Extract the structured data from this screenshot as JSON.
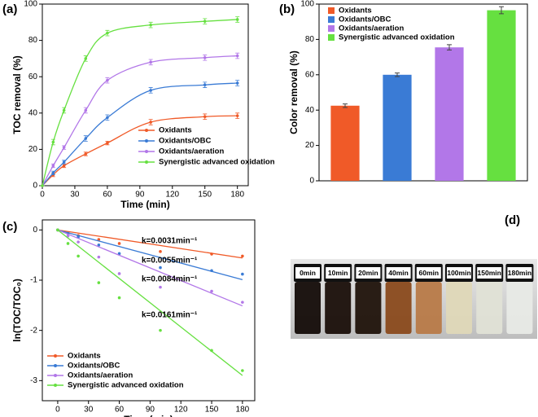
{
  "chart_data": [
    {
      "type": "line",
      "panel_label": "(a)",
      "xlabel": "Time (min)",
      "ylabel": "TOC removal (%)",
      "x": [
        0,
        10,
        20,
        40,
        60,
        100,
        150,
        180
      ],
      "xlim": [
        0,
        190
      ],
      "xticks": [
        0,
        30,
        60,
        90,
        120,
        150,
        180
      ],
      "ylim": [
        0,
        100
      ],
      "yticks": [
        0,
        20,
        40,
        60,
        80,
        100
      ],
      "series": [
        {
          "name": "Oxidants",
          "color": "#f05a28",
          "values": [
            0,
            6,
            11,
            17.5,
            23.5,
            35,
            38,
            38.5
          ],
          "errors": [
            0,
            1,
            1,
            1,
            1,
            1.5,
            1.5,
            1.5
          ]
        },
        {
          "name": "Oxidants/OBC",
          "color": "#3a7bd5",
          "values": [
            0,
            7,
            13,
            26,
            37.5,
            52.5,
            55.5,
            56.5
          ],
          "errors": [
            0,
            1,
            1,
            1.5,
            1.5,
            1.5,
            1.5,
            1.5
          ]
        },
        {
          "name": "Oxidants/aeration",
          "color": "#b277e8",
          "values": [
            0,
            11,
            21,
            41.5,
            58,
            68,
            70.5,
            71.5
          ],
          "errors": [
            0,
            1,
            1,
            1.5,
            1.5,
            1.5,
            1.5,
            1.5
          ]
        },
        {
          "name": "Synergistic advanced oxidation",
          "color": "#66e040",
          "values": [
            0,
            24,
            41.5,
            70,
            84,
            88.5,
            90.5,
            91.5
          ],
          "errors": [
            0,
            1.5,
            1.5,
            1.5,
            1.5,
            1.5,
            1.5,
            1.5
          ]
        }
      ]
    },
    {
      "type": "bar",
      "panel_label": "(b)",
      "ylabel": "Color removal (%)",
      "categories": [
        "Oxidants",
        "Oxidants/OBC",
        "Oxidants/aeration",
        "Synergistic advanced oxidation"
      ],
      "colors": [
        "#f05a28",
        "#3a7bd5",
        "#b277e8",
        "#66e040"
      ],
      "values": [
        42.5,
        60,
        75.5,
        96.5
      ],
      "errors": [
        1,
        1,
        1.5,
        2
      ],
      "ylim": [
        0,
        100
      ],
      "yticks": [
        0,
        20,
        40,
        60,
        80,
        100
      ]
    },
    {
      "type": "scatter",
      "panel_label": "(c)",
      "xlabel": "Time (min)",
      "ylabel": "ln(TOC/TOC₀)",
      "x": [
        0,
        10,
        20,
        40,
        60,
        100,
        150,
        180
      ],
      "xlim": [
        -15,
        192
      ],
      "xticks": [
        0,
        30,
        60,
        90,
        120,
        150,
        180
      ],
      "ylim": [
        -3.4,
        0.2
      ],
      "yticks": [
        -3,
        -2,
        -1,
        0
      ],
      "series": [
        {
          "name": "Oxidants",
          "color": "#f05a28",
          "values": [
            0,
            -0.06,
            -0.11,
            -0.19,
            -0.27,
            -0.43,
            -0.48,
            -0.52
          ],
          "k": 0.0031,
          "k_label": "k=0.0031min⁻¹"
        },
        {
          "name": "Oxidants/OBC",
          "color": "#3a7bd5",
          "values": [
            0,
            -0.07,
            -0.14,
            -0.3,
            -0.47,
            -0.75,
            -0.81,
            -0.88
          ],
          "k": 0.0055,
          "k_label": "k=0.0055min⁻¹"
        },
        {
          "name": "Oxidants/aeration",
          "color": "#b277e8",
          "values": [
            0,
            -0.12,
            -0.24,
            -0.54,
            -0.87,
            -1.14,
            -1.22,
            -1.44
          ],
          "k": 0.0084,
          "k_label": "k=0.0084min⁻¹"
        },
        {
          "name": "Synergistic advanced oxidation",
          "color": "#66e040",
          "values": [
            0,
            -0.27,
            -0.52,
            -1.05,
            -1.35,
            -2.0,
            -2.4,
            -2.8
          ],
          "k": 0.0161,
          "k_label": "k=0.0161min⁻¹"
        }
      ]
    }
  ],
  "photo": {
    "panel_label": "(d)",
    "labels": [
      "0min",
      "10min",
      "20min",
      "40min",
      "60min",
      "100min",
      "150min",
      "180min"
    ]
  }
}
